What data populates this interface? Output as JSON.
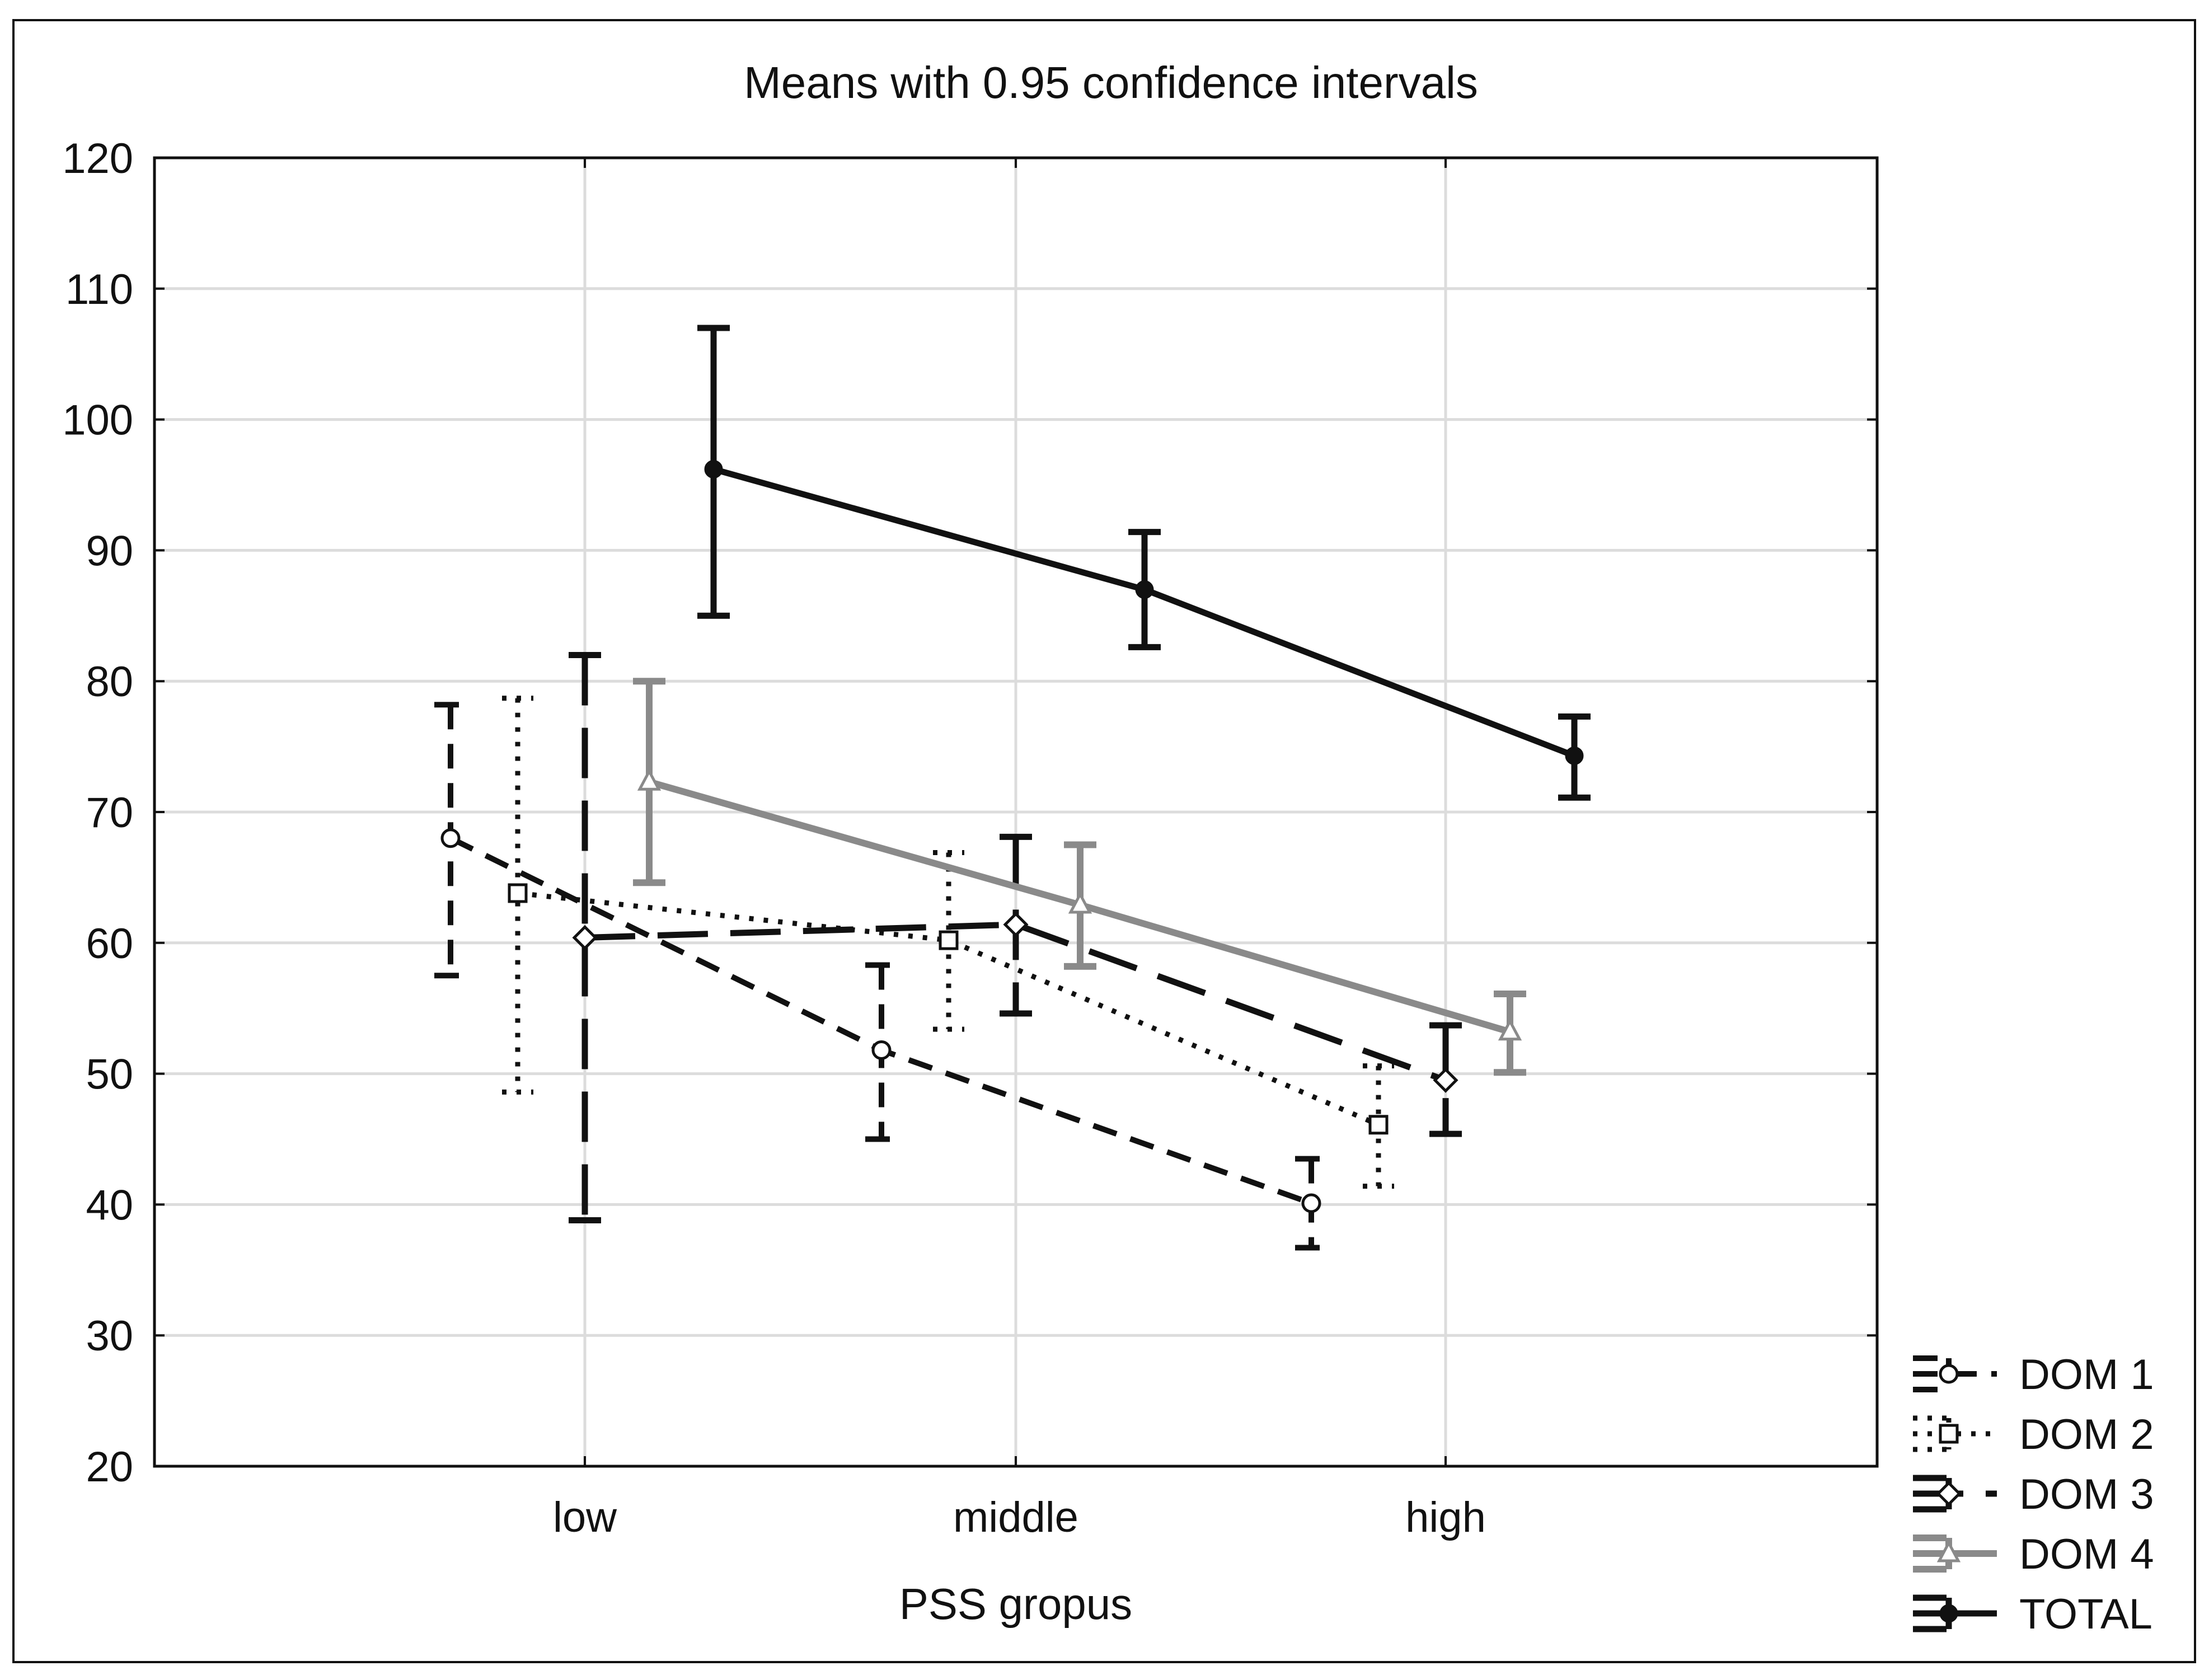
{
  "chart_data": {
    "type": "line",
    "title": "Means with 0.95 confidence intervals",
    "xlabel": "PSS gropus",
    "ylabel": "",
    "categories": [
      "low",
      "middle",
      "high"
    ],
    "ylim": [
      20,
      120
    ],
    "yticks": [
      20,
      30,
      40,
      50,
      60,
      70,
      80,
      90,
      100,
      110,
      120
    ],
    "grid": true,
    "legend_position": "bottom-right, outside plot",
    "series": [
      {
        "name": "DOM 1",
        "marker": "circle",
        "line_style": "dashed",
        "color": "#111111",
        "values": [
          68,
          51.8,
          40.1
        ],
        "ci_lower": [
          57.5,
          45,
          36.7
        ],
        "ci_upper": [
          78.2,
          58.3,
          43.5
        ]
      },
      {
        "name": "DOM 2",
        "marker": "square",
        "line_style": "dotted",
        "color": "#111111",
        "values": [
          63.8,
          60.2,
          46.1
        ],
        "ci_lower": [
          48.6,
          53.4,
          41.4
        ],
        "ci_upper": [
          78.7,
          66.9,
          50.6
        ]
      },
      {
        "name": "DOM 3",
        "marker": "diamond",
        "line_style": "long-dashed",
        "color": "#111111",
        "values": [
          60.4,
          61.4,
          49.5
        ],
        "ci_lower": [
          38.8,
          54.6,
          45.4
        ],
        "ci_upper": [
          82,
          68.1,
          53.7
        ]
      },
      {
        "name": "DOM 4",
        "marker": "triangle",
        "line_style": "solid-gray",
        "color": "#8a8a8a",
        "values": [
          72.3,
          62.9,
          53.2
        ],
        "ci_lower": [
          64.6,
          58.2,
          50.1
        ],
        "ci_upper": [
          80,
          67.5,
          56.1
        ]
      },
      {
        "name": "TOTAL",
        "marker": "filled-circle",
        "line_style": "solid",
        "color": "#111111",
        "values": [
          96.2,
          87,
          74.3
        ],
        "ci_lower": [
          85,
          82.6,
          71.1
        ],
        "ci_upper": [
          107,
          91.4,
          77.3
        ]
      }
    ]
  }
}
